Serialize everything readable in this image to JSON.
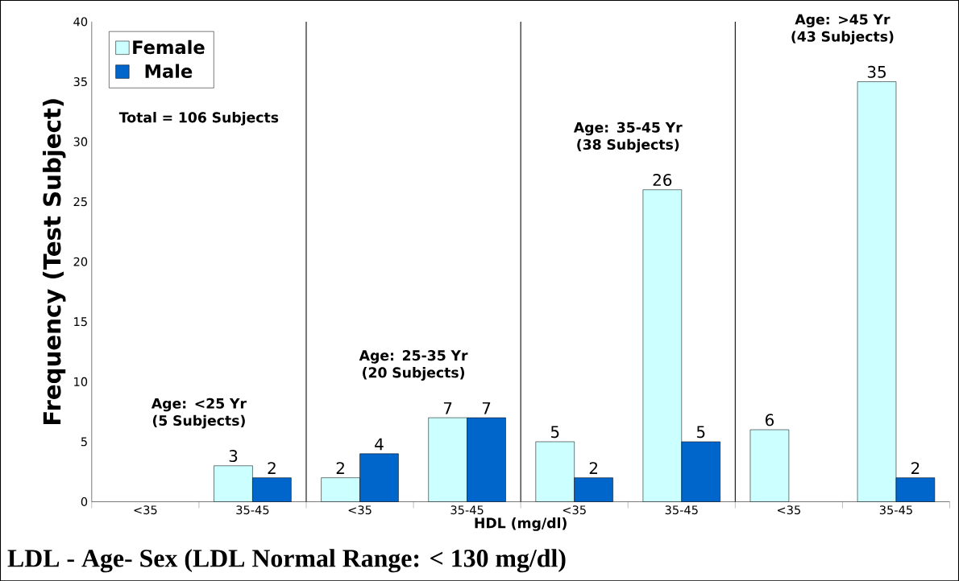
{
  "chart_data": {
    "type": "bar",
    "title": "LDL - Age- Sex (LDL Normal Range: < 130 mg/dl)",
    "xlabel": "HDL (mg/dl)",
    "ylabel": "Frequency (Test Subject)",
    "categories": [
      "<35",
      "35-45",
      "<35",
      "35-45",
      "<35",
      "35-45",
      "<35",
      "35-45"
    ],
    "series": [
      {
        "name": "Female",
        "color": "#ccffff",
        "values": [
          null,
          3,
          2,
          7,
          5,
          26,
          6,
          35
        ]
      },
      {
        "name": "Male",
        "color": "#0066cc",
        "values": [
          null,
          2,
          4,
          7,
          2,
          5,
          null,
          2
        ]
      }
    ],
    "ylim": [
      0,
      40
    ],
    "yticks": [
      0,
      5,
      10,
      15,
      20,
      25,
      30,
      35,
      40
    ],
    "data_labels": true,
    "legend": "top left",
    "grid": false,
    "annotations": [
      "Total = 106 Subjects",
      "Age: <25 Yr (5 Subjects)",
      "Age: 25-35 Yr (20 Subjects)",
      "Age: 35-45 Yr (38 Subjects)",
      "Age: >45 Yr (43 Subjects)"
    ]
  }
}
